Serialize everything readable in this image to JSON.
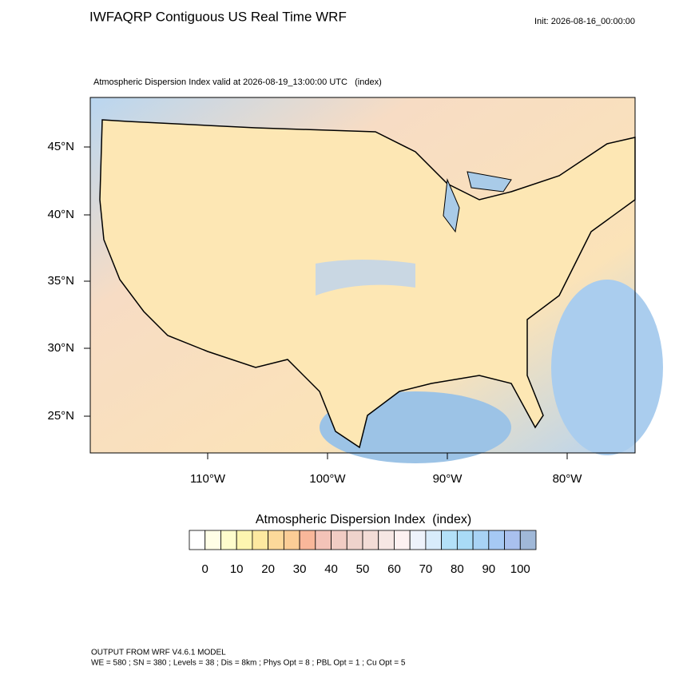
{
  "header": {
    "title": "IWFAQRP Contiguous US Real Time WRF",
    "init": "Init: 2026-08-16_00:00:00"
  },
  "map": {
    "subtitle": "Atmospheric Dispersion Index valid at 2026-08-19_13:00:00 UTC   (index)",
    "lat_labels": [
      "45°N",
      "40°N",
      "35°N",
      "30°N",
      "25°N"
    ],
    "lon_labels": [
      "110°W",
      "100°W",
      "90°W",
      "80°W"
    ]
  },
  "legend": {
    "title": "Atmospheric Dispersion Index  (index)",
    "ticks": [
      0,
      10,
      20,
      30,
      40,
      50,
      60,
      70,
      80,
      90,
      100
    ],
    "colors": [
      "#ffffff",
      "#fffee6",
      "#fefccc",
      "#fdf5b0",
      "#fde9a0",
      "#fcd99a",
      "#fbcd96",
      "#f9b79a",
      "#f4c3b8",
      "#f1ccc4",
      "#efd3cc",
      "#f3dcd6",
      "#f6e7e4",
      "#fdf1f1",
      "#eef3fb",
      "#d8ecfb",
      "#b3e1f8",
      "#a9dbf6",
      "#a8d3f5",
      "#a6c9f4",
      "#a9c0ee",
      "#a0b8d8"
    ]
  },
  "footer": {
    "lines": [
      "OUTPUT FROM WRF V4.6.1 MODEL",
      "WE = 580 ; SN = 380 ; Levels = 38 ; Dis = 8km ; Phys Opt = 8 ; PBL Opt = 1 ; Cu Opt = 5"
    ]
  }
}
